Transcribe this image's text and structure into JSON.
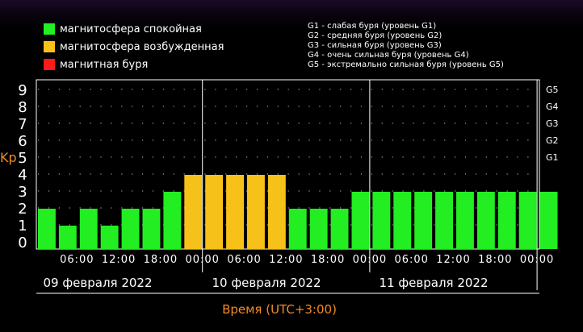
{
  "legend": [
    {
      "label": "магнитосфера спокойная",
      "color": "#22ee22"
    },
    {
      "label": "магнитосфера возбужденная",
      "color": "#f6c21a"
    },
    {
      "label": "магнитная буря",
      "color": "#ff1a1a"
    }
  ],
  "storm_levels": [
    "G1 - слабая буря (уровень G1)",
    "G2 - средняя буря (уровень G2)",
    "G3 - сильная буря (уровень G3)",
    "G4 - очень сильная буря (уровень G4)",
    "G5 - экстремально сильная буря (уровень G5)"
  ],
  "chart_data": {
    "type": "bar",
    "ylabel": "Kp",
    "xlabel": "Время (UTC+3:00)",
    "ylim": [
      0,
      9
    ],
    "yticks": [
      "0",
      "1",
      "2",
      "3",
      "4",
      "5",
      "6",
      "7",
      "8",
      "9"
    ],
    "right_ticks": [
      {
        "label": "G1",
        "kp": 5
      },
      {
        "label": "G2",
        "kp": 6
      },
      {
        "label": "G3",
        "kp": 7
      },
      {
        "label": "G4",
        "kp": 8
      },
      {
        "label": "G5",
        "kp": 9
      }
    ],
    "time_ticks": [
      "06:00",
      "12:00",
      "18:00",
      "00:00",
      "06:00",
      "12:00",
      "18:00",
      "00:00",
      "06:00",
      "12:00",
      "18:00",
      "00:00"
    ],
    "days": [
      "09 февраля 2022",
      "10 февраля 2022",
      "11 февраля 2022"
    ],
    "grid": true,
    "values": [
      2,
      1,
      2,
      1,
      2,
      2,
      3,
      4,
      4,
      4,
      4,
      4,
      2,
      2,
      2,
      3,
      3,
      3,
      3,
      3,
      3,
      3,
      3,
      3,
      3
    ],
    "colors": {
      "quiet": "#22ee22",
      "active": "#f6c21a",
      "storm": "#ff1a1a"
    },
    "axis_color": "#f08a24"
  }
}
